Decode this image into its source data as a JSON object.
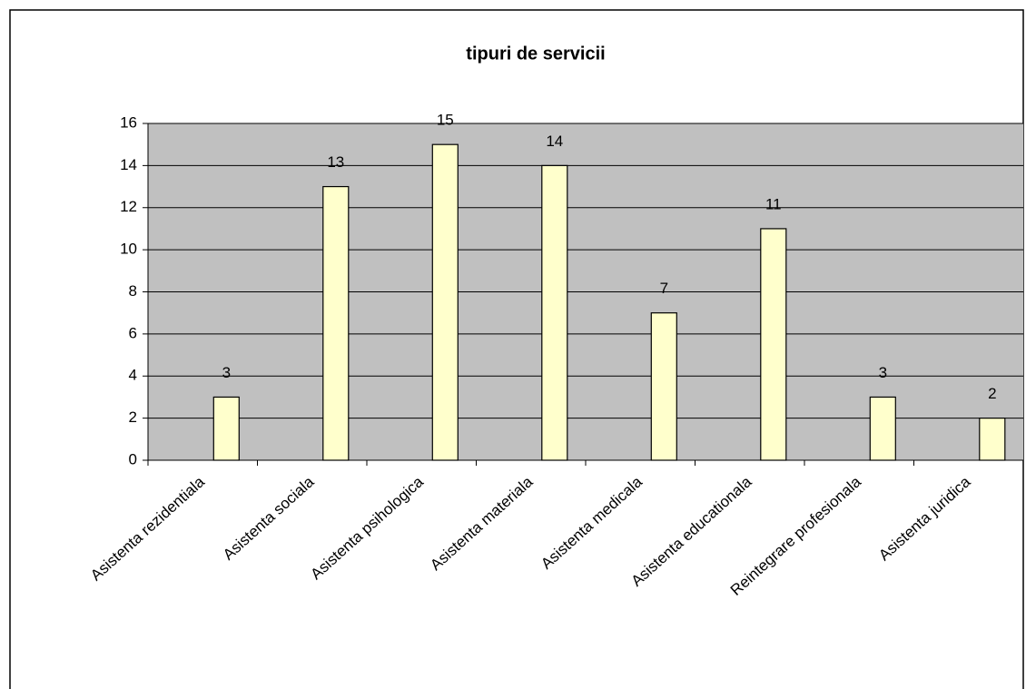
{
  "chart_data": {
    "type": "bar",
    "title": "tipuri de servicii",
    "categories": [
      "Asistenta rezidentiala",
      "Asistenta sociala",
      "Asistenta psihologica",
      "Asistenta materiala",
      "Asistenta medicala",
      "Asistenta educationala",
      "Reintegrare profesionala",
      "Asistenta juridica"
    ],
    "values": [
      3,
      13,
      15,
      14,
      7,
      11,
      3,
      2
    ],
    "color": "#ffffcc",
    "ylim": [
      0,
      16
    ],
    "yticks": [
      0,
      2,
      4,
      6,
      8,
      10,
      12,
      14,
      16
    ],
    "grid": true
  }
}
